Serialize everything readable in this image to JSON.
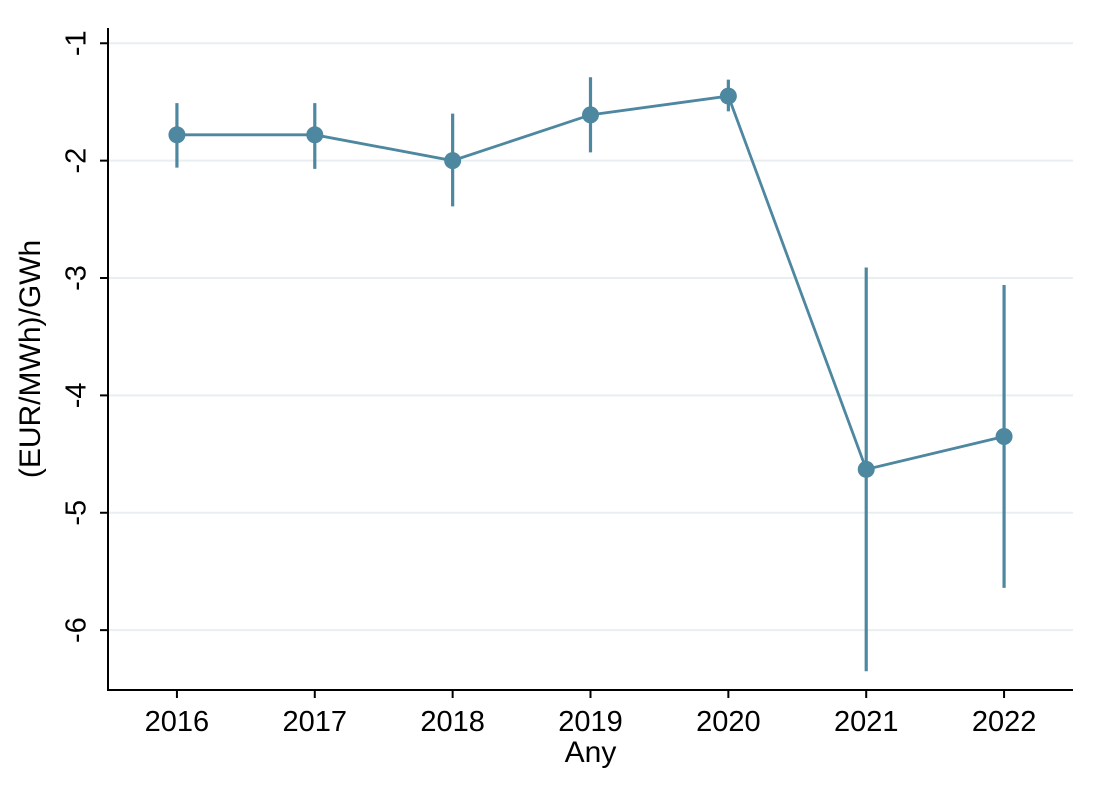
{
  "chart_data": {
    "type": "line",
    "subtype": "point-estimates-with-95ci-errorbars",
    "title": "",
    "xlabel": "Any",
    "ylabel": "(EUR/MWh)/GWh",
    "categories": [
      "2016",
      "2017",
      "2018",
      "2019",
      "2020",
      "2021",
      "2022"
    ],
    "series": [
      {
        "name": "estimate",
        "values": [
          -1.78,
          -1.78,
          -2.0,
          -1.61,
          -1.45,
          -4.63,
          -4.35
        ],
        "ci_low": [
          -2.06,
          -2.07,
          -2.39,
          -1.93,
          -1.58,
          -6.35,
          -5.64
        ],
        "ci_high": [
          -1.51,
          -1.51,
          -1.6,
          -1.29,
          -1.31,
          -2.91,
          -3.06
        ]
      }
    ],
    "yticks": [
      -1,
      -2,
      -3,
      -4,
      -5,
      -6
    ],
    "ylim": [
      -6.51,
      -0.87
    ],
    "xlim_categories": [
      2015.5,
      2022.5
    ],
    "grid": "horizontal-only",
    "legend": "none",
    "colors": {
      "series": "#4e87a0",
      "grid": "#e9eff1",
      "axis": "#000000",
      "text": "#000000",
      "background": "#ffffff"
    }
  }
}
